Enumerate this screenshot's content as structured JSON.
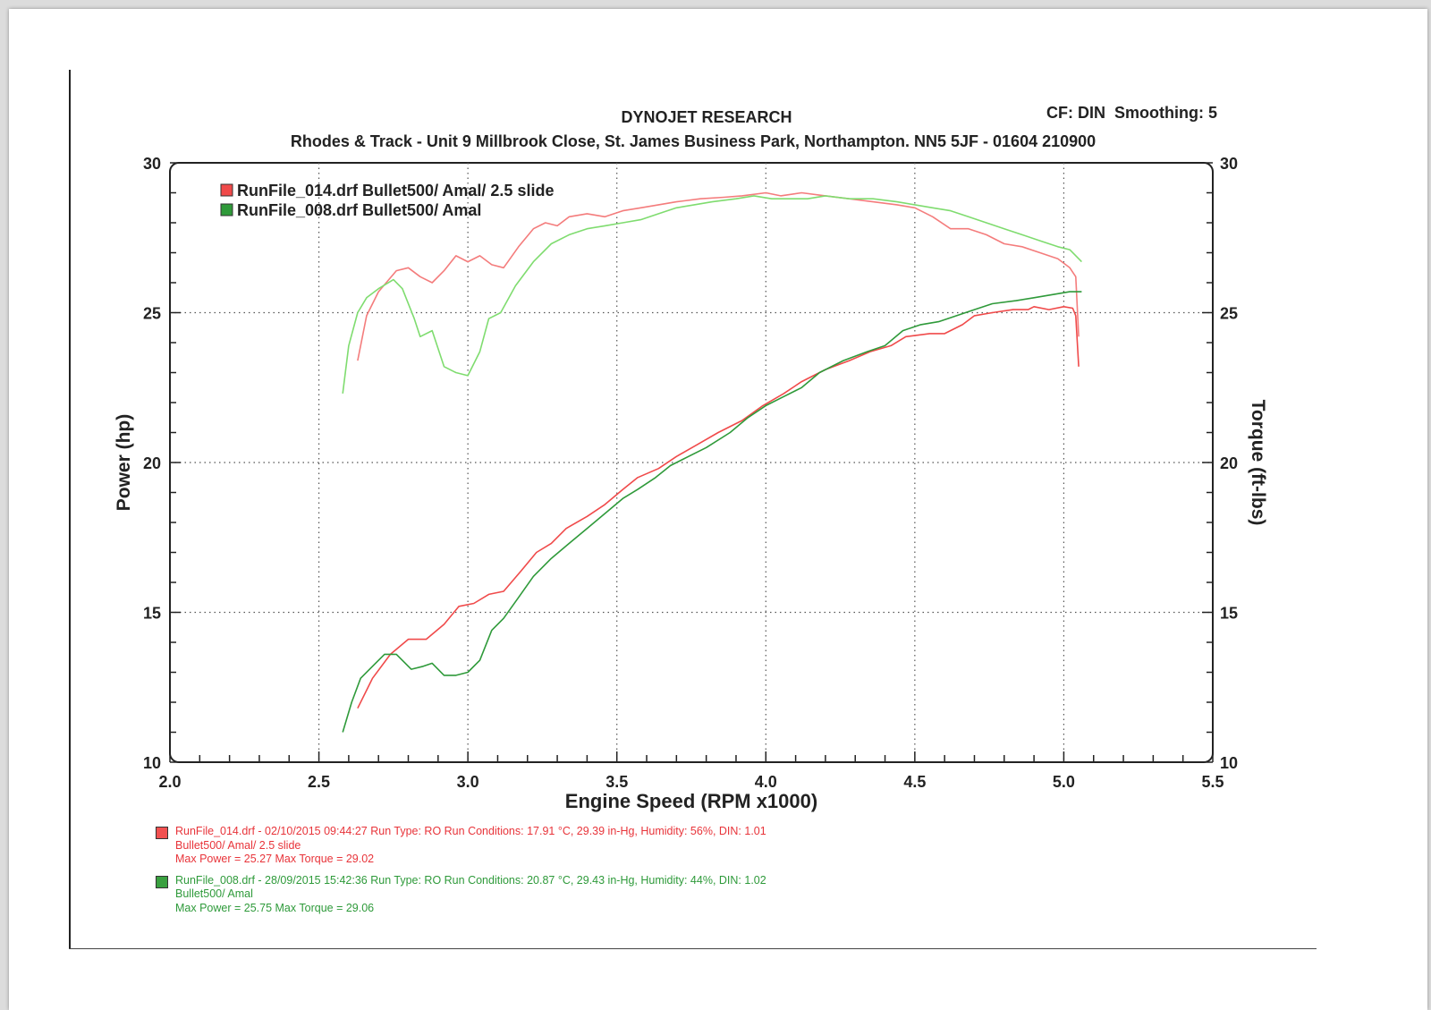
{
  "header": {
    "title": "DYNOJET RESEARCH",
    "cf_smoothing": "CF: DIN  Smoothing: 5",
    "subtitle": "Rhodes & Track - Unit 9 Millbrook Close, St. James Business Park, Northampton. NN5 5JF - 01604 210900"
  },
  "colors": {
    "run014": "#f04a4a",
    "run014_torque": "#f47c7c",
    "run008": "#2f9a3a",
    "run008_torque": "#7fdc6f"
  },
  "chart_data": {
    "type": "line",
    "xlabel": "Engine Speed (RPM x1000)",
    "ylabel": "Power (hp)",
    "ylabel_right": "Torque (ft-lbs)",
    "xlim": [
      2.0,
      5.5
    ],
    "ylim": [
      10,
      30
    ],
    "ylim_right": [
      10,
      30
    ],
    "x_ticks": [
      "2.0",
      "2.5",
      "3.0",
      "3.5",
      "4.0",
      "4.5",
      "5.0",
      "5.5"
    ],
    "y_ticks": [
      "10",
      "15",
      "20",
      "25",
      "30"
    ],
    "y_ticks_right": [
      "10",
      "15",
      "20",
      "25",
      "30"
    ],
    "grid": true,
    "legend_position": "top-left",
    "legend": [
      "RunFile_014.drf Bullet500/ Amal/ 2.5 slide",
      "RunFile_008.drf Bullet500/ Amal"
    ],
    "series": [
      {
        "name": "RunFile_014.drf Bullet500/ Amal/ 2.5 slide",
        "measure": "power",
        "color": "#f04a4a",
        "points": [
          [
            2.63,
            11.8
          ],
          [
            2.68,
            12.8
          ],
          [
            2.74,
            13.6
          ],
          [
            2.8,
            14.1
          ],
          [
            2.86,
            14.1
          ],
          [
            2.92,
            14.6
          ],
          [
            2.97,
            15.2
          ],
          [
            3.02,
            15.3
          ],
          [
            3.07,
            15.6
          ],
          [
            3.12,
            15.7
          ],
          [
            3.18,
            16.4
          ],
          [
            3.23,
            17.0
          ],
          [
            3.28,
            17.3
          ],
          [
            3.33,
            17.8
          ],
          [
            3.4,
            18.2
          ],
          [
            3.46,
            18.6
          ],
          [
            3.52,
            19.1
          ],
          [
            3.57,
            19.5
          ],
          [
            3.64,
            19.8
          ],
          [
            3.7,
            20.2
          ],
          [
            3.77,
            20.6
          ],
          [
            3.84,
            21.0
          ],
          [
            3.92,
            21.4
          ],
          [
            3.99,
            21.9
          ],
          [
            4.06,
            22.3
          ],
          [
            4.12,
            22.7
          ],
          [
            4.2,
            23.1
          ],
          [
            4.28,
            23.4
          ],
          [
            4.35,
            23.7
          ],
          [
            4.42,
            23.9
          ],
          [
            4.47,
            24.2
          ],
          [
            4.55,
            24.3
          ],
          [
            4.6,
            24.3
          ],
          [
            4.66,
            24.6
          ],
          [
            4.7,
            24.9
          ],
          [
            4.76,
            25.0
          ],
          [
            4.83,
            25.1
          ],
          [
            4.88,
            25.1
          ],
          [
            4.9,
            25.2
          ],
          [
            4.95,
            25.1
          ],
          [
            5.0,
            25.2
          ],
          [
            5.03,
            25.15
          ],
          [
            5.04,
            24.9
          ],
          [
            5.05,
            23.2
          ]
        ]
      },
      {
        "name": "RunFile_014.drf Bullet500/ Amal/ 2.5 slide",
        "measure": "torque",
        "color": "#f47c7c",
        "points": [
          [
            2.63,
            23.4
          ],
          [
            2.66,
            24.9
          ],
          [
            2.7,
            25.7
          ],
          [
            2.76,
            26.4
          ],
          [
            2.8,
            26.5
          ],
          [
            2.84,
            26.2
          ],
          [
            2.88,
            26.0
          ],
          [
            2.92,
            26.4
          ],
          [
            2.96,
            26.9
          ],
          [
            3.0,
            26.7
          ],
          [
            3.04,
            26.9
          ],
          [
            3.08,
            26.6
          ],
          [
            3.12,
            26.5
          ],
          [
            3.17,
            27.2
          ],
          [
            3.22,
            27.8
          ],
          [
            3.26,
            28.0
          ],
          [
            3.3,
            27.9
          ],
          [
            3.34,
            28.2
          ],
          [
            3.4,
            28.3
          ],
          [
            3.46,
            28.2
          ],
          [
            3.52,
            28.4
          ],
          [
            3.58,
            28.5
          ],
          [
            3.64,
            28.6
          ],
          [
            3.7,
            28.7
          ],
          [
            3.78,
            28.8
          ],
          [
            3.86,
            28.85
          ],
          [
            3.92,
            28.9
          ],
          [
            4.0,
            29.0
          ],
          [
            4.05,
            28.9
          ],
          [
            4.12,
            29.0
          ],
          [
            4.2,
            28.9
          ],
          [
            4.28,
            28.8
          ],
          [
            4.36,
            28.7
          ],
          [
            4.44,
            28.6
          ],
          [
            4.5,
            28.5
          ],
          [
            4.56,
            28.2
          ],
          [
            4.62,
            27.8
          ],
          [
            4.68,
            27.8
          ],
          [
            4.74,
            27.6
          ],
          [
            4.8,
            27.3
          ],
          [
            4.86,
            27.2
          ],
          [
            4.92,
            27.0
          ],
          [
            4.98,
            26.8
          ],
          [
            5.02,
            26.5
          ],
          [
            5.04,
            26.2
          ],
          [
            5.05,
            24.2
          ]
        ]
      },
      {
        "name": "RunFile_008.drf Bullet500/ Amal",
        "measure": "power",
        "color": "#2f9a3a",
        "points": [
          [
            2.58,
            11.0
          ],
          [
            2.61,
            12.0
          ],
          [
            2.64,
            12.8
          ],
          [
            2.68,
            13.2
          ],
          [
            2.72,
            13.6
          ],
          [
            2.76,
            13.6
          ],
          [
            2.81,
            13.1
          ],
          [
            2.85,
            13.2
          ],
          [
            2.88,
            13.3
          ],
          [
            2.92,
            12.9
          ],
          [
            2.96,
            12.9
          ],
          [
            3.0,
            13.0
          ],
          [
            3.04,
            13.4
          ],
          [
            3.08,
            14.4
          ],
          [
            3.12,
            14.8
          ],
          [
            3.17,
            15.5
          ],
          [
            3.22,
            16.2
          ],
          [
            3.28,
            16.8
          ],
          [
            3.34,
            17.3
          ],
          [
            3.4,
            17.8
          ],
          [
            3.46,
            18.3
          ],
          [
            3.52,
            18.8
          ],
          [
            3.57,
            19.1
          ],
          [
            3.63,
            19.5
          ],
          [
            3.68,
            19.9
          ],
          [
            3.74,
            20.2
          ],
          [
            3.8,
            20.5
          ],
          [
            3.88,
            21.0
          ],
          [
            3.94,
            21.5
          ],
          [
            4.0,
            21.9
          ],
          [
            4.06,
            22.2
          ],
          [
            4.12,
            22.5
          ],
          [
            4.18,
            23.0
          ],
          [
            4.26,
            23.4
          ],
          [
            4.34,
            23.7
          ],
          [
            4.4,
            23.9
          ],
          [
            4.46,
            24.4
          ],
          [
            4.52,
            24.6
          ],
          [
            4.58,
            24.7
          ],
          [
            4.64,
            24.9
          ],
          [
            4.7,
            25.1
          ],
          [
            4.76,
            25.3
          ],
          [
            4.84,
            25.4
          ],
          [
            4.9,
            25.5
          ],
          [
            4.96,
            25.6
          ],
          [
            5.02,
            25.7
          ],
          [
            5.06,
            25.7
          ]
        ]
      },
      {
        "name": "RunFile_008.drf Bullet500/ Amal",
        "measure": "torque",
        "color": "#7fdc6f",
        "points": [
          [
            2.58,
            22.3
          ],
          [
            2.6,
            23.9
          ],
          [
            2.63,
            25.0
          ],
          [
            2.66,
            25.5
          ],
          [
            2.7,
            25.8
          ],
          [
            2.75,
            26.1
          ],
          [
            2.78,
            25.8
          ],
          [
            2.82,
            24.8
          ],
          [
            2.84,
            24.2
          ],
          [
            2.88,
            24.4
          ],
          [
            2.92,
            23.2
          ],
          [
            2.96,
            23.0
          ],
          [
            3.0,
            22.9
          ],
          [
            3.04,
            23.7
          ],
          [
            3.07,
            24.8
          ],
          [
            3.11,
            25.0
          ],
          [
            3.16,
            25.9
          ],
          [
            3.22,
            26.7
          ],
          [
            3.28,
            27.3
          ],
          [
            3.34,
            27.6
          ],
          [
            3.4,
            27.8
          ],
          [
            3.46,
            27.9
          ],
          [
            3.52,
            28.0
          ],
          [
            3.58,
            28.1
          ],
          [
            3.64,
            28.3
          ],
          [
            3.7,
            28.5
          ],
          [
            3.76,
            28.6
          ],
          [
            3.82,
            28.7
          ],
          [
            3.9,
            28.8
          ],
          [
            3.96,
            28.9
          ],
          [
            4.02,
            28.8
          ],
          [
            4.08,
            28.8
          ],
          [
            4.14,
            28.8
          ],
          [
            4.2,
            28.9
          ],
          [
            4.28,
            28.8
          ],
          [
            4.36,
            28.8
          ],
          [
            4.44,
            28.7
          ],
          [
            4.5,
            28.6
          ],
          [
            4.56,
            28.5
          ],
          [
            4.62,
            28.4
          ],
          [
            4.68,
            28.2
          ],
          [
            4.74,
            28.0
          ],
          [
            4.8,
            27.8
          ],
          [
            4.86,
            27.6
          ],
          [
            4.92,
            27.4
          ],
          [
            4.98,
            27.2
          ],
          [
            5.02,
            27.1
          ],
          [
            5.06,
            26.7
          ]
        ]
      }
    ]
  },
  "run_details": [
    {
      "line1": "RunFile_014.drf - 02/10/2015 09:44:27  Run Type: RO  Run Conditions: 17.91 °C, 29.39 in-Hg,  Humidity:  56%, DIN: 1.01",
      "line2": "Bullet500/ Amal/ 2.5 slide",
      "line3": "Max Power = 25.27  Max Torque = 29.02"
    },
    {
      "line1": "RunFile_008.drf - 28/09/2015 15:42:36  Run Type: RO  Run Conditions: 20.87 °C, 29.43 in-Hg,  Humidity:  44%, DIN: 1.02",
      "line2": "Bullet500/ Amal",
      "line3": "Max Power = 25.75  Max Torque = 29.06"
    }
  ]
}
